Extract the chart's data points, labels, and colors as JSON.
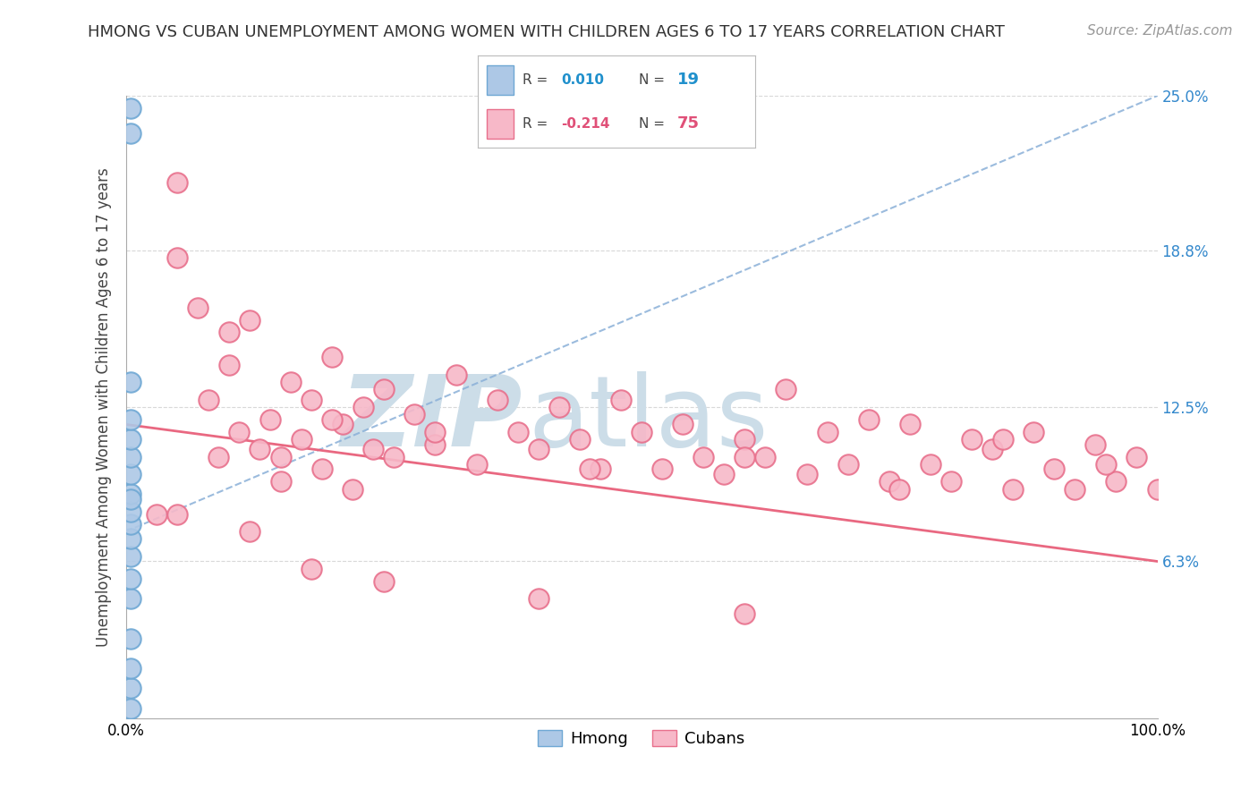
{
  "title": "HMONG VS CUBAN UNEMPLOYMENT AMONG WOMEN WITH CHILDREN AGES 6 TO 17 YEARS CORRELATION CHART",
  "source": "Source: ZipAtlas.com",
  "ylabel": "Unemployment Among Women with Children Ages 6 to 17 years",
  "xlim": [
    0.0,
    100.0
  ],
  "ylim": [
    0.0,
    25.0
  ],
  "hmong_R": 0.01,
  "hmong_N": 19,
  "cuban_R": -0.214,
  "cuban_N": 75,
  "hmong_color": "#adc8e6",
  "hmong_edge": "#6fa8d4",
  "cuban_color": "#f7b8c8",
  "cuban_edge": "#e8708c",
  "hmong_line_color": "#8ab0d8",
  "cuban_line_color": "#e8607a",
  "background_color": "#ffffff",
  "grid_color": "#d8d8d8",
  "watermark_color": "#ccdde8",
  "legend_R_color_hmong": "#2090cc",
  "legend_R_color_cuban": "#e05078",
  "legend_N_color_hmong": "#2090cc",
  "legend_N_color_cuban": "#e05078",
  "hmong_x": [
    0.5,
    0.5,
    0.5,
    0.5,
    0.5,
    0.5,
    0.5,
    0.5,
    0.5,
    0.5,
    0.5,
    0.5,
    0.5,
    0.5,
    0.5,
    0.5,
    0.5,
    0.5,
    0.5
  ],
  "hmong_y": [
    0.4,
    1.2,
    2.0,
    3.2,
    4.8,
    5.6,
    6.5,
    7.2,
    7.8,
    8.3,
    9.0,
    9.8,
    10.5,
    11.2,
    12.0,
    13.5,
    23.5,
    24.5,
    8.8
  ],
  "cuban_x": [
    3,
    5,
    7,
    8,
    9,
    10,
    11,
    12,
    13,
    14,
    15,
    16,
    17,
    18,
    19,
    20,
    21,
    22,
    23,
    24,
    25,
    26,
    28,
    30,
    32,
    34,
    36,
    38,
    40,
    42,
    44,
    46,
    48,
    50,
    52,
    54,
    56,
    58,
    60,
    62,
    64,
    66,
    68,
    70,
    72,
    74,
    76,
    78,
    80,
    82,
    84,
    86,
    88,
    90,
    92,
    94,
    96,
    98,
    100,
    5,
    10,
    15,
    20,
    30,
    45,
    60,
    75,
    85,
    95,
    5,
    12,
    18,
    25,
    40,
    60
  ],
  "cuban_y": [
    8.2,
    21.5,
    16.5,
    12.8,
    10.5,
    14.2,
    11.5,
    16.0,
    10.8,
    12.0,
    9.5,
    13.5,
    11.2,
    12.8,
    10.0,
    14.5,
    11.8,
    9.2,
    12.5,
    10.8,
    13.2,
    10.5,
    12.2,
    11.0,
    13.8,
    10.2,
    12.8,
    11.5,
    10.8,
    12.5,
    11.2,
    10.0,
    12.8,
    11.5,
    10.0,
    11.8,
    10.5,
    9.8,
    11.2,
    10.5,
    13.2,
    9.8,
    11.5,
    10.2,
    12.0,
    9.5,
    11.8,
    10.2,
    9.5,
    11.2,
    10.8,
    9.2,
    11.5,
    10.0,
    9.2,
    11.0,
    9.5,
    10.5,
    9.2,
    18.5,
    15.5,
    10.5,
    12.0,
    11.5,
    10.0,
    10.5,
    9.2,
    11.2,
    10.2,
    8.2,
    7.5,
    6.0,
    5.5,
    4.8,
    4.2
  ]
}
